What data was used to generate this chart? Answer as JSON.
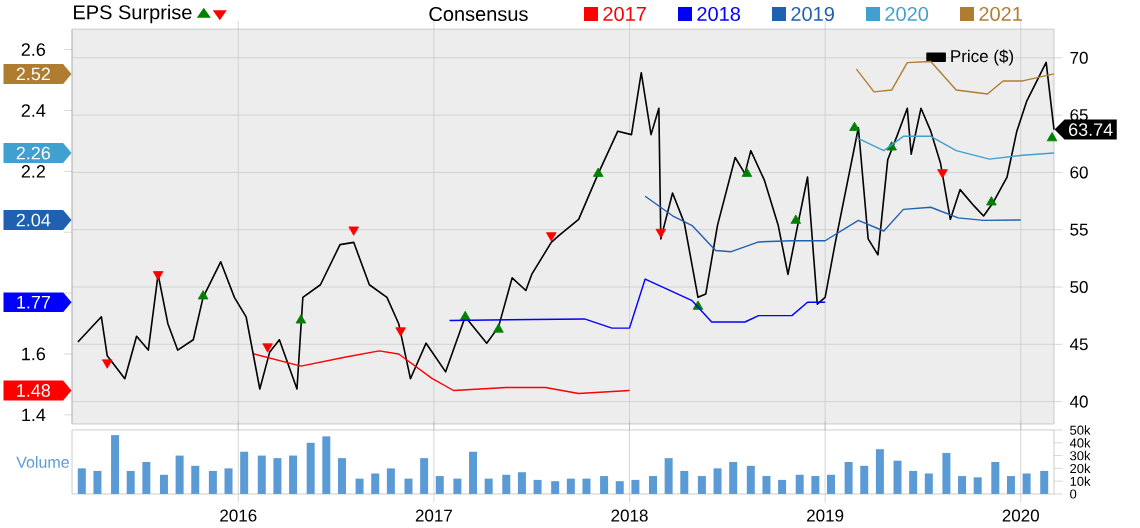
{
  "chart_data": [
    {
      "type": "line",
      "xlim": [
        2015.15,
        2020.17
      ],
      "xticks": [
        2016,
        2017,
        2018,
        2019,
        2020
      ],
      "ylim": [
        1.37,
        2.667
      ],
      "yticks": [
        1.4,
        1.48,
        1.6,
        1.77,
        {
          "value": 1.8,
          "label": null
        },
        {
          "value": 2.0,
          "label": null
        },
        2.04,
        2.2,
        2.26,
        2.4,
        2.52,
        2.6
      ],
      "y2lim": [
        38.05,
        72.5
      ],
      "y2ticks": [
        40,
        45,
        50,
        55,
        60,
        65,
        70
      ],
      "grid": true,
      "legend": "top right",
      "tick_labels": "y",
      "legend_title": "Consensus",
      "annotations": [
        "EPS Surprise"
      ],
      "series": [
        {
          "name": "Price ($)",
          "axis": "y2",
          "color": "#000000",
          "x": [
            2015.18,
            2015.3,
            2015.33,
            2015.42,
            2015.48,
            2015.54,
            2015.59,
            2015.64,
            2015.69,
            2015.77,
            2015.82,
            2015.91,
            2015.98,
            2016.04,
            2016.11,
            2016.16,
            2016.21,
            2016.3,
            2016.33,
            2016.42,
            2016.52,
            2016.59,
            2016.67,
            2016.76,
            2016.82,
            2016.88,
            2016.96,
            2017.06,
            2017.16,
            2017.27,
            2017.33,
            2017.4,
            2017.47,
            2017.5,
            2017.6,
            2017.64,
            2017.74,
            2017.84,
            2017.94,
            2018.01,
            2018.06,
            2018.11,
            2018.15,
            2018.16,
            2018.22,
            2018.28,
            2018.35,
            2018.39,
            2018.45,
            2018.54,
            2018.59,
            2018.62,
            2018.69,
            2018.76,
            2018.81,
            2018.86,
            2018.91,
            2018.96,
            2019.0,
            2019.05,
            2019.11,
            2019.17,
            2019.22,
            2019.27,
            2019.32,
            2019.37,
            2019.42,
            2019.44,
            2019.49,
            2019.54,
            2019.59,
            2019.64,
            2019.69,
            2019.76,
            2019.81,
            2019.86,
            2019.93,
            2019.98,
            2020.03,
            2020.08,
            2020.13,
            2020.17
          ],
          "values": [
            45.2,
            47.4,
            44.0,
            42.0,
            45.7,
            44.5,
            51.1,
            46.8,
            44.5,
            45.4,
            49.1,
            52.2,
            49.1,
            47.4,
            41.1,
            44.3,
            45.4,
            41.1,
            49.1,
            50.2,
            53.7,
            53.9,
            50.2,
            49.1,
            46.8,
            42.0,
            45.1,
            42.6,
            47.4,
            45.1,
            46.5,
            50.8,
            49.7,
            51.1,
            53.9,
            54.5,
            55.9,
            59.9,
            63.6,
            63.3,
            68.7,
            63.3,
            65.6,
            54.2,
            58.2,
            55.6,
            49.1,
            49.4,
            55.4,
            61.3,
            59.9,
            61.9,
            59.3,
            55.4,
            51.1,
            55.4,
            59.6,
            48.5,
            49.1,
            53.7,
            58.8,
            63.9,
            54.2,
            52.8,
            61.1,
            63.3,
            65.6,
            61.6,
            65.6,
            63.6,
            60.8,
            55.9,
            58.5,
            57.1,
            56.2,
            57.4,
            59.6,
            63.6,
            66.2,
            67.9,
            69.6,
            63.74
          ],
          "value_labels": [
            null,
            null,
            null,
            null,
            null,
            null,
            null,
            null,
            null,
            null,
            null,
            null,
            null,
            null,
            null,
            null,
            null,
            null,
            null,
            null,
            null,
            null,
            null,
            null,
            null,
            null,
            null,
            null,
            null,
            null,
            null,
            null,
            null,
            null,
            null,
            null,
            null,
            null,
            null,
            null,
            null,
            null,
            null,
            null,
            null,
            null,
            null,
            null,
            null,
            null,
            null,
            null,
            null,
            null,
            null,
            null,
            null,
            null,
            null,
            null,
            null,
            null,
            null,
            null,
            null,
            null,
            null,
            null,
            null,
            null,
            null,
            null,
            null,
            null,
            null,
            null,
            null,
            null,
            null,
            null,
            null,
            "63.74"
          ]
        },
        {
          "name": "2017",
          "color": "#ff0000",
          "x": [
            2016.08,
            2016.32,
            2016.55,
            2016.72,
            2016.82,
            2016.99,
            2017.1,
            2017.37,
            2017.57,
            2017.74,
            2018.0
          ],
          "values": [
            1.6,
            1.56,
            1.59,
            1.61,
            1.6,
            1.52,
            1.48,
            1.49,
            1.49,
            1.47,
            1.48
          ]
        },
        {
          "name": "2018",
          "color": "#0000ff",
          "x": [
            2017.08,
            2017.77,
            2017.91,
            2018.0,
            2018.08,
            2018.32,
            2018.42,
            2018.59,
            2018.66,
            2018.83,
            2018.91,
            2019.0
          ],
          "values": [
            1.71,
            1.715,
            1.685,
            1.685,
            1.846,
            1.775,
            1.705,
            1.705,
            1.726,
            1.726,
            1.77,
            1.77
          ]
        },
        {
          "name": "2019",
          "color": "#2060b0",
          "x": [
            2018.08,
            2018.22,
            2018.32,
            2018.44,
            2018.52,
            2018.66,
            2018.83,
            2019.0,
            2019.17,
            2019.3,
            2019.4,
            2019.54,
            2019.68,
            2019.81,
            2020.0
          ],
          "values": [
            2.118,
            2.054,
            2.022,
            1.94,
            1.936,
            1.968,
            1.972,
            1.972,
            2.039,
            2.004,
            2.075,
            2.082,
            2.047,
            2.039,
            2.04
          ]
        },
        {
          "name": "2020",
          "color": "#40a0d0",
          "x": [
            2019.16,
            2019.3,
            2019.4,
            2019.54,
            2019.67,
            2019.84,
            2020.01,
            2020.17
          ],
          "values": [
            2.311,
            2.268,
            2.315,
            2.315,
            2.268,
            2.24,
            2.253,
            2.26
          ]
        },
        {
          "name": "2021",
          "color": "#b07d30",
          "x": [
            2019.16,
            2019.25,
            2019.34,
            2019.42,
            2019.54,
            2019.67,
            2019.83,
            2019.91,
            2020.01,
            2020.17
          ],
          "values": [
            2.536,
            2.461,
            2.467,
            2.557,
            2.561,
            2.467,
            2.454,
            2.497,
            2.497,
            2.52
          ]
        },
        {
          "type": "scatter",
          "axis": "y2",
          "color": "#008000",
          "marker": "triangle",
          "x": [
            2015.82,
            2016.32,
            2017.16,
            2017.33,
            2017.84,
            2018.35,
            2018.6,
            2018.85,
            2019.15,
            2019.34,
            2019.85,
            2020.16
          ],
          "values": [
            49.2,
            47.1,
            47.4,
            46.3,
            59.9,
            48.3,
            59.9,
            55.8,
            63.9,
            62.2,
            57.4,
            63.0
          ]
        },
        {
          "type": "scatter",
          "axis": "y2",
          "color": "#ff0000",
          "marker": "triangle",
          "x": [
            2015.33,
            2015.59,
            2016.15,
            2016.59,
            2016.83,
            2017.6,
            2018.16,
            2019.6
          ],
          "values": [
            43.4,
            51.1,
            44.8,
            55.0,
            46.2,
            54.5,
            54.8,
            60.0
          ]
        }
      ]
    },
    {
      "type": "bar",
      "xlim": [
        2015.15,
        2020.17
      ],
      "xticks": [
        2016,
        2017,
        2018,
        2019,
        2020
      ],
      "ylim": [
        0,
        50000
      ],
      "yticks": [
        0,
        {
          "value": 10000,
          "label": "10k"
        },
        {
          "value": 20000,
          "label": "20k"
        },
        {
          "value": 30000,
          "label": "30k"
        },
        {
          "value": 40000,
          "label": "40k"
        },
        {
          "value": 50000,
          "label": "50k"
        }
      ],
      "grid": "x",
      "ylabel": "Volume",
      "color": "#5b9bd5",
      "x": [
        2015.2,
        2015.28,
        2015.37,
        2015.45,
        2015.53,
        2015.62,
        2015.7,
        2015.78,
        2015.87,
        2015.95,
        2016.03,
        2016.12,
        2016.2,
        2016.28,
        2016.37,
        2016.45,
        2016.53,
        2016.62,
        2016.7,
        2016.78,
        2016.87,
        2016.95,
        2017.03,
        2017.12,
        2017.2,
        2017.28,
        2017.37,
        2017.45,
        2017.53,
        2017.62,
        2017.7,
        2017.78,
        2017.87,
        2017.95,
        2018.03,
        2018.12,
        2018.2,
        2018.28,
        2018.37,
        2018.45,
        2018.53,
        2018.62,
        2018.7,
        2018.78,
        2018.87,
        2018.95,
        2019.03,
        2019.12,
        2019.2,
        2019.28,
        2019.37,
        2019.45,
        2019.53,
        2019.62,
        2019.7,
        2019.78,
        2019.87,
        2019.95,
        2020.03,
        2020.12
      ],
      "values": [
        20000,
        18000,
        46000,
        18000,
        25000,
        15000,
        30000,
        22000,
        18000,
        20000,
        33000,
        30000,
        28000,
        30000,
        40000,
        45000,
        28000,
        12000,
        16000,
        20000,
        12000,
        28000,
        14000,
        12000,
        33000,
        12000,
        15000,
        17000,
        11000,
        10000,
        12000,
        12000,
        14000,
        10000,
        11000,
        14000,
        28000,
        18000,
        14000,
        20000,
        25000,
        22000,
        14000,
        11000,
        15000,
        14000,
        15000,
        25000,
        22000,
        35000,
        26000,
        18000,
        16000,
        32000,
        14000,
        13000,
        25000,
        14000,
        16000,
        18000
      ]
    }
  ]
}
